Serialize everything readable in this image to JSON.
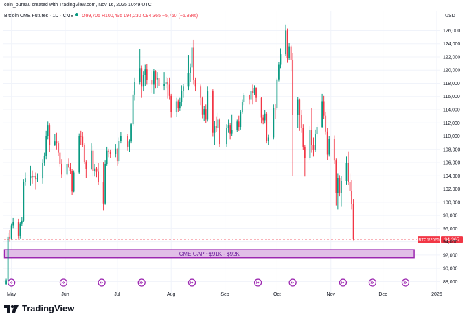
{
  "header": {
    "created_note": "coin_bureau created with TradingView.com, Nov 16, 2025 10:49 UTC",
    "symbol_line": "Bitcoin CME Futures · 1D · CME",
    "ohlc": "O99,705  H100,495  L94,230  C94,365  −5,760 (−5.83%)"
  },
  "brand": {
    "name": "TradingView",
    "logo_icon": "tradingview-logo-icon"
  },
  "colors": {
    "up": "#089981",
    "down": "#f23645",
    "gap_fill": "#e1bee7",
    "gap_border": "#9c27b0",
    "price_line": "#f23645",
    "grid": "#f0f3fa",
    "axis_text": "#131722"
  },
  "chart_data": {
    "type": "candlestick",
    "currency_label": "USD",
    "y_ticks": [
      "126,000",
      "124,000",
      "122,000",
      "120,000",
      "118,000",
      "116,000",
      "114,000",
      "112,000",
      "110,000",
      "108,000",
      "106,000",
      "104,000",
      "102,000",
      "100,000",
      "98,000",
      "96,000",
      "94,000",
      "92,000",
      "90,000",
      "88,000"
    ],
    "ylim": [
      87000,
      127500
    ],
    "x_ticks": [
      "May",
      "Jun",
      "Jul",
      "Aug",
      "Sep",
      "Oct",
      "Nov",
      "Dec",
      "2026"
    ],
    "x_range": [
      "2025-04-26",
      "2026-01-03"
    ],
    "last_price": {
      "label": "BTC1!2025",
      "value": "94,365",
      "price": 94365
    },
    "gap": {
      "label": "CME GAP ~$91K - $92K",
      "low": 91600,
      "high": 92800,
      "start": "2025-04-27",
      "end": "2025-12-19"
    },
    "event_markers": [
      "2025-05-01",
      "2025-05-31",
      "2025-06-22",
      "2025-07-15",
      "2025-08-13",
      "2025-09-20",
      "2025-10-10",
      "2025-11-08",
      "2025-11-25",
      "2025-12-14"
    ],
    "candles": [
      [
        "2025-04-28",
        87600,
        88400,
        87500,
        88200
      ],
      [
        "2025-04-29",
        88200,
        95400,
        88100,
        94800
      ],
      [
        "2025-04-30",
        94800,
        95800,
        94000,
        94500
      ],
      [
        "2025-05-01",
        94500,
        96800,
        94300,
        96500
      ],
      [
        "2025-05-02",
        96500,
        97600,
        96000,
        97000
      ],
      [
        "2025-05-05",
        97000,
        97500,
        94500,
        94900
      ],
      [
        "2025-05-06",
        94900,
        97000,
        94500,
        96800
      ],
      [
        "2025-05-07",
        96800,
        97800,
        96400,
        97200
      ],
      [
        "2025-05-08",
        97200,
        103500,
        97000,
        103000
      ],
      [
        "2025-05-09",
        103000,
        104500,
        102500,
        103600
      ],
      [
        "2025-05-12",
        103600,
        105500,
        102500,
        104000
      ],
      [
        "2025-05-13",
        104000,
        104800,
        102800,
        103800
      ],
      [
        "2025-05-14",
        103800,
        104700,
        103000,
        104000
      ],
      [
        "2025-05-15",
        104000,
        104500,
        101900,
        103500
      ],
      [
        "2025-05-16",
        103500,
        104400,
        103000,
        103600
      ],
      [
        "2025-05-19",
        103600,
        106500,
        102800,
        106000
      ],
      [
        "2025-05-20",
        106000,
        107500,
        105500,
        107000
      ],
      [
        "2025-05-21",
        107000,
        110800,
        106500,
        110000
      ],
      [
        "2025-05-22",
        110000,
        112200,
        109500,
        111700
      ],
      [
        "2025-05-23",
        111700,
        111900,
        107600,
        108600
      ],
      [
        "2025-05-26",
        108600,
        110300,
        108500,
        109200
      ],
      [
        "2025-05-27",
        109200,
        110500,
        108000,
        108900
      ],
      [
        "2025-05-28",
        108900,
        109300,
        107000,
        107500
      ],
      [
        "2025-05-29",
        107500,
        108900,
        105400,
        105800
      ],
      [
        "2025-05-30",
        105800,
        106500,
        103700,
        104200
      ],
      [
        "2025-06-02",
        104200,
        106000,
        104000,
        105800
      ],
      [
        "2025-06-03",
        105800,
        106600,
        105200,
        105300
      ],
      [
        "2025-06-04",
        105300,
        106000,
        104300,
        104700
      ],
      [
        "2025-06-05",
        104700,
        105000,
        101100,
        101600
      ],
      [
        "2025-06-06",
        101600,
        104800,
        101500,
        104500
      ],
      [
        "2025-06-09",
        104500,
        110400,
        104300,
        110000
      ],
      [
        "2025-06-10",
        110000,
        110800,
        108600,
        109900
      ],
      [
        "2025-06-11",
        109900,
        110600,
        108300,
        108700
      ],
      [
        "2025-06-12",
        108700,
        108900,
        105800,
        106100
      ],
      [
        "2025-06-13",
        106100,
        106300,
        103700,
        105000
      ],
      [
        "2025-06-16",
        105000,
        108900,
        104900,
        107800
      ],
      [
        "2025-06-17",
        107800,
        108500,
        103900,
        104700
      ],
      [
        "2025-06-18",
        104700,
        105800,
        103900,
        105100
      ],
      [
        "2025-06-19",
        105100,
        105300,
        103800,
        104600
      ],
      [
        "2025-06-20",
        104600,
        106000,
        102600,
        103000
      ],
      [
        "2025-06-23",
        103000,
        106100,
        98800,
        99800
      ],
      [
        "2025-06-24",
        99800,
        106300,
        99600,
        105800
      ],
      [
        "2025-06-25",
        105800,
        108400,
        105500,
        107800
      ],
      [
        "2025-06-26",
        107800,
        108100,
        106800,
        107600
      ],
      [
        "2025-06-27",
        107600,
        108000,
        106700,
        107300
      ],
      [
        "2025-06-30",
        107300,
        108800,
        106800,
        108100
      ],
      [
        "2025-07-01",
        108100,
        108200,
        105500,
        106200
      ],
      [
        "2025-07-02",
        106200,
        109800,
        105800,
        109300
      ],
      [
        "2025-07-03",
        109300,
        110600,
        108900,
        110000
      ],
      [
        "2025-07-07",
        110000,
        110300,
        107800,
        108400
      ],
      [
        "2025-07-08",
        108400,
        109500,
        107600,
        109200
      ],
      [
        "2025-07-09",
        109200,
        112000,
        108900,
        111800
      ],
      [
        "2025-07-10",
        111800,
        116800,
        111500,
        116300
      ],
      [
        "2025-07-11",
        116300,
        118900,
        115400,
        118200
      ],
      [
        "2025-07-14",
        118200,
        123200,
        117800,
        120300
      ],
      [
        "2025-07-15",
        120300,
        120700,
        115800,
        117500
      ],
      [
        "2025-07-16",
        117500,
        119800,
        116800,
        119200
      ],
      [
        "2025-07-17",
        119200,
        120800,
        117600,
        120100
      ],
      [
        "2025-07-18",
        120100,
        120900,
        117800,
        118500
      ],
      [
        "2025-07-21",
        118500,
        119800,
        116500,
        117800
      ],
      [
        "2025-07-22",
        117800,
        120200,
        116400,
        119800
      ],
      [
        "2025-07-23",
        119800,
        120000,
        117200,
        118600
      ],
      [
        "2025-07-24",
        118600,
        119700,
        117300,
        118800
      ],
      [
        "2025-07-25",
        118800,
        119200,
        114800,
        117600
      ],
      [
        "2025-07-28",
        117600,
        119700,
        117000,
        117900
      ],
      [
        "2025-07-29",
        117900,
        119000,
        117200,
        118200
      ],
      [
        "2025-07-30",
        118200,
        118800,
        115700,
        117800
      ],
      [
        "2025-07-31",
        117800,
        118900,
        115500,
        116100
      ],
      [
        "2025-08-01",
        116100,
        116400,
        112800,
        113600
      ],
      [
        "2025-08-04",
        113600,
        115800,
        112900,
        115300
      ],
      [
        "2025-08-05",
        115300,
        115500,
        113600,
        114200
      ],
      [
        "2025-08-06",
        114200,
        115800,
        113800,
        115200
      ],
      [
        "2025-08-07",
        115200,
        117700,
        114500,
        116900
      ],
      [
        "2025-08-08",
        116900,
        117900,
        115800,
        117500
      ],
      [
        "2025-08-11",
        117500,
        122300,
        117000,
        119600
      ],
      [
        "2025-08-12",
        119600,
        121000,
        118200,
        120400
      ],
      [
        "2025-08-13",
        120400,
        124500,
        120000,
        123400
      ],
      [
        "2025-08-14",
        123400,
        124600,
        117800,
        118500
      ],
      [
        "2025-08-15",
        118500,
        118900,
        116800,
        117500
      ],
      [
        "2025-08-18",
        117500,
        117800,
        114700,
        115800
      ],
      [
        "2025-08-19",
        115800,
        116000,
        112700,
        113300
      ],
      [
        "2025-08-20",
        113300,
        114600,
        112300,
        114100
      ],
      [
        "2025-08-21",
        114100,
        114800,
        112000,
        112500
      ],
      [
        "2025-08-22",
        112500,
        117500,
        112200,
        116800
      ],
      [
        "2025-08-25",
        116800,
        117100,
        109900,
        110500
      ],
      [
        "2025-08-26",
        110500,
        112300,
        108700,
        111600
      ],
      [
        "2025-08-27",
        111600,
        113000,
        110600,
        111200
      ],
      [
        "2025-08-28",
        111200,
        113500,
        110800,
        112500
      ],
      [
        "2025-08-29",
        112500,
        112700,
        108300,
        108800
      ],
      [
        "2025-09-02",
        108800,
        111800,
        108400,
        111300
      ],
      [
        "2025-09-03",
        111300,
        112500,
        110500,
        111700
      ],
      [
        "2025-09-04",
        111700,
        112000,
        109500,
        110400
      ],
      [
        "2025-09-05",
        110400,
        113300,
        110000,
        110900
      ],
      [
        "2025-09-08",
        110900,
        112500,
        110600,
        112200
      ],
      [
        "2025-09-09",
        112200,
        113100,
        110800,
        111400
      ],
      [
        "2025-09-10",
        111400,
        114000,
        111000,
        113600
      ],
      [
        "2025-09-11",
        113600,
        115500,
        113400,
        115200
      ],
      [
        "2025-09-12",
        115200,
        116600,
        114700,
        116200
      ],
      [
        "2025-09-15",
        116200,
        116300,
        114800,
        115500
      ],
      [
        "2025-09-16",
        115500,
        117100,
        114800,
        116900
      ],
      [
        "2025-09-17",
        116900,
        117800,
        114800,
        116500
      ],
      [
        "2025-09-18",
        116500,
        117700,
        116200,
        117300
      ],
      [
        "2025-09-19",
        117300,
        117400,
        115200,
        115800
      ],
      [
        "2025-09-22",
        115800,
        115900,
        111900,
        112800
      ],
      [
        "2025-09-23",
        112800,
        113300,
        111800,
        112400
      ],
      [
        "2025-09-24",
        112400,
        114000,
        111900,
        113400
      ],
      [
        "2025-09-25",
        113400,
        113600,
        108900,
        109300
      ],
      [
        "2025-09-26",
        109300,
        110200,
        108600,
        109800
      ],
      [
        "2025-09-29",
        109800,
        114800,
        109500,
        114300
      ],
      [
        "2025-09-30",
        114300,
        114900,
        112600,
        114200
      ],
      [
        "2025-10-01",
        114200,
        118900,
        114000,
        118600
      ],
      [
        "2025-10-02",
        118600,
        121200,
        118300,
        120800
      ],
      [
        "2025-10-03",
        120800,
        123300,
        120300,
        122400
      ],
      [
        "2025-10-06",
        122400,
        126900,
        122100,
        126000
      ],
      [
        "2025-10-07",
        126000,
        126300,
        121100,
        121800
      ],
      [
        "2025-10-08",
        121800,
        124100,
        121500,
        123600
      ],
      [
        "2025-10-09",
        123600,
        123800,
        119800,
        121500
      ],
      [
        "2025-10-10",
        121500,
        122600,
        104000,
        113200
      ],
      [
        "2025-10-13",
        113200,
        115900,
        111200,
        115500
      ],
      [
        "2025-10-14",
        115500,
        115700,
        110800,
        113200
      ],
      [
        "2025-10-15",
        113200,
        113900,
        110500,
        111300
      ],
      [
        "2025-10-16",
        111300,
        111800,
        107900,
        108400
      ],
      [
        "2025-10-17",
        108400,
        108600,
        103900,
        106700
      ],
      [
        "2025-10-20",
        106700,
        111500,
        106400,
        110900
      ],
      [
        "2025-10-21",
        110900,
        114300,
        107500,
        108700
      ],
      [
        "2025-10-22",
        108700,
        109800,
        106900,
        107900
      ],
      [
        "2025-10-23",
        107900,
        111000,
        107600,
        110300
      ],
      [
        "2025-10-24",
        110300,
        111900,
        109800,
        111400
      ],
      [
        "2025-10-27",
        111400,
        116400,
        111200,
        115300
      ],
      [
        "2025-10-28",
        115300,
        116100,
        112600,
        113100
      ],
      [
        "2025-10-29",
        113100,
        113700,
        110200,
        110700
      ],
      [
        "2025-10-30",
        110700,
        111200,
        106400,
        107200
      ],
      [
        "2025-10-31",
        107200,
        110000,
        106900,
        109600
      ],
      [
        "2025-11-03",
        109600,
        110100,
        105800,
        106300
      ],
      [
        "2025-11-04",
        106300,
        106600,
        99500,
        101400
      ],
      [
        "2025-11-05",
        101400,
        104400,
        98900,
        103700
      ],
      [
        "2025-11-06",
        103700,
        104100,
        100900,
        101400
      ],
      [
        "2025-11-07",
        101400,
        104000,
        99300,
        103200
      ],
      [
        "2025-11-10",
        103200,
        106900,
        102700,
        106000
      ],
      [
        "2025-11-11",
        106000,
        107700,
        102600,
        103000
      ],
      [
        "2025-11-12",
        103000,
        104400,
        100900,
        101700
      ],
      [
        "2025-11-13",
        101700,
        103400,
        98900,
        99700
      ],
      [
        "2025-11-14",
        99705,
        100495,
        94230,
        94365
      ]
    ]
  }
}
